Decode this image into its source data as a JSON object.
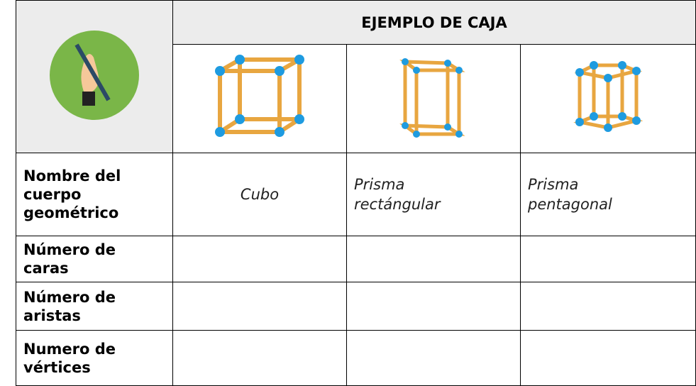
{
  "header": {
    "title": "EJEMPLO DE CAJA"
  },
  "table": {
    "rows": [
      {
        "label": "Nombre del cuerpo geométrico",
        "cells": [
          "Cubo",
          "Prisma rectángular",
          "Prisma pentagonal"
        ]
      },
      {
        "label": "Número de caras"
      },
      {
        "label": "Número de aristas"
      },
      {
        "label": "Numero de vértices"
      }
    ]
  }
}
